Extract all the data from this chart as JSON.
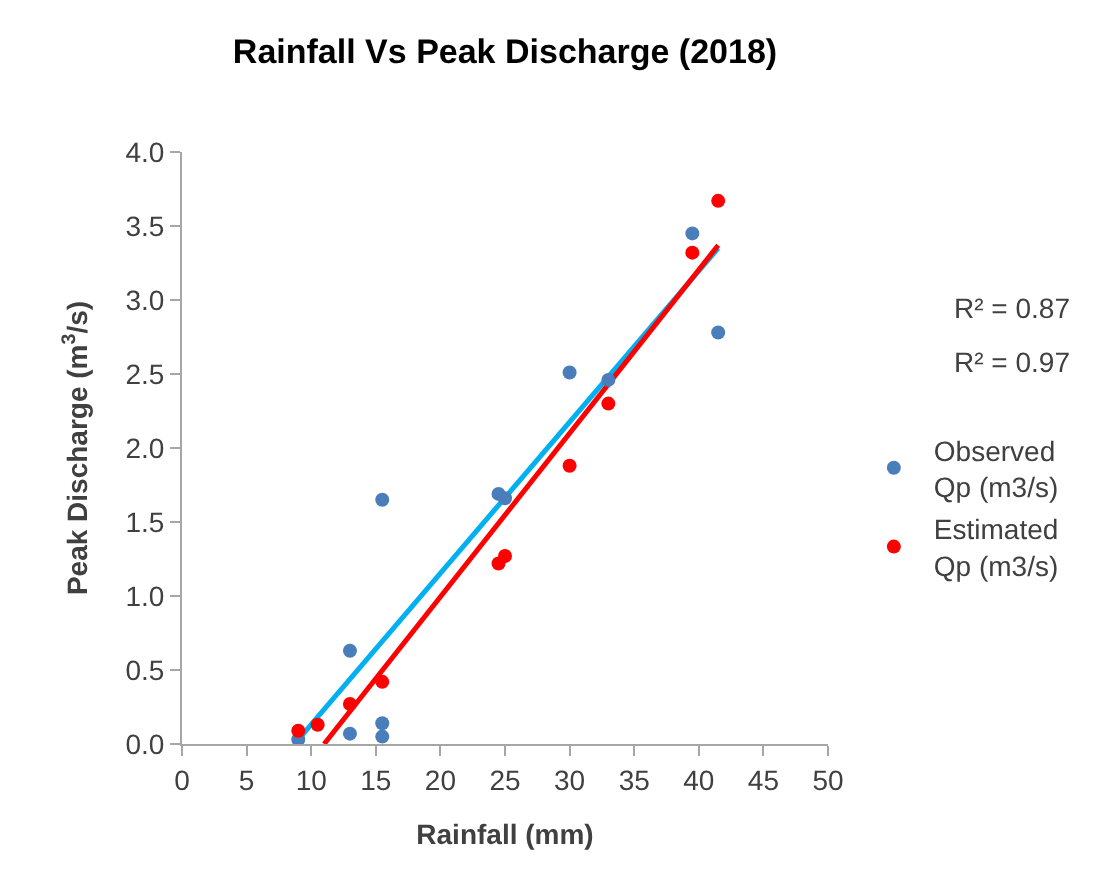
{
  "chart_data": {
    "type": "scatter",
    "title": "Rainfall Vs Peak Discharge (2018)",
    "xlabel": "Rainfall (mm)",
    "ylabel": "Peak Discharge (m$^{3}$/s)",
    "xlim": [
      0,
      50
    ],
    "xticks": [
      0,
      5,
      10,
      15,
      20,
      25,
      30,
      35,
      40,
      45,
      50
    ],
    "ylim": [
      0,
      4
    ],
    "yticks": [
      {
        "value": 0,
        "label": "0.0"
      },
      {
        "value": 0.5,
        "label": "0.5"
      },
      {
        "value": 1,
        "label": "1.0"
      },
      {
        "value": 1.5,
        "label": "1.5"
      },
      {
        "value": 2,
        "label": "2.0"
      },
      {
        "value": 2.5,
        "label": "2.5"
      },
      {
        "value": 3,
        "label": "3.0"
      },
      {
        "value": 3.5,
        "label": "3.5"
      },
      {
        "value": 4,
        "label": "4.0"
      }
    ],
    "legend": "right",
    "marker": "circle",
    "annotations": [
      "R² = 0.87",
      "R² = 0.97"
    ],
    "series": [
      {
        "name": "Observed Qp (m3/s)",
        "color": "#4a7ebb",
        "x": [
          9,
          10.5,
          13,
          13,
          15.5,
          15.5,
          15.5,
          24.5,
          25,
          30,
          33,
          39.5,
          41.5
        ],
        "values": [
          0.03,
          null,
          0.63,
          0.07,
          1.65,
          0.14,
          0.05,
          1.69,
          1.66,
          2.51,
          2.46,
          3.45,
          2.78
        ]
      },
      {
        "name": "Estimated Qp (m3/s)",
        "color": "#ff0000",
        "x": [
          9,
          10.5,
          13,
          15.5,
          24.5,
          25,
          30,
          33,
          39.5,
          41.5
        ],
        "values": [
          0.09,
          0.13,
          0.27,
          0.42,
          1.22,
          1.27,
          1.88,
          2.3,
          3.32,
          3.67
        ]
      },
      {
        "type": "line",
        "color": "#00b0f0",
        "x": [
          9,
          41.5
        ],
        "values": [
          0.03,
          3.35
        ],
        "marker": "none"
      },
      {
        "type": "line",
        "color": "#ff0000",
        "x": [
          11,
          41.5
        ],
        "values": [
          0,
          3.37
        ],
        "marker": "none"
      }
    ]
  }
}
